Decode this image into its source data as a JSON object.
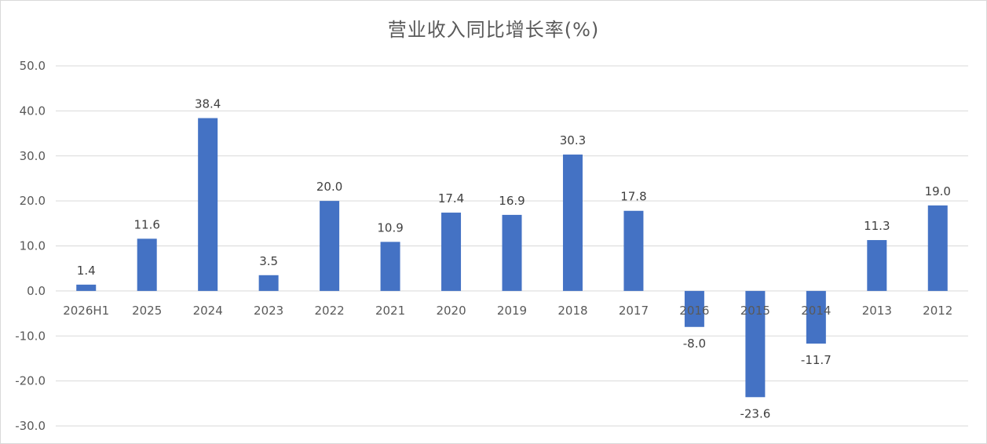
{
  "chart_data": {
    "type": "bar",
    "title": "营业收入同比增长率(%)",
    "categories": [
      "2026H1",
      "2025",
      "2024",
      "2023",
      "2022",
      "2021",
      "2020",
      "2019",
      "2018",
      "2017",
      "2016",
      "2015",
      "2014",
      "2013",
      "2012"
    ],
    "series": [
      {
        "values": [
          1.4,
          11.6,
          38.4,
          3.5,
          20.0,
          10.9,
          17.4,
          16.9,
          30.3,
          17.8,
          -8.0,
          -23.6,
          -11.7,
          11.3,
          19.0
        ],
        "color": "#4472c4"
      }
    ],
    "ylim": [
      -30,
      50
    ],
    "yticks": [
      "-30.0",
      "-20.0",
      "-10.0",
      "0.0",
      "10.0",
      "20.0",
      "30.0",
      "40.0",
      "50.0"
    ],
    "data_labels": [
      "1.4",
      "11.6",
      "38.4",
      "3.5",
      "20.0",
      "10.9",
      "17.4",
      "16.9",
      "30.3",
      "17.8",
      "-8.0",
      "-23.6",
      "-11.7",
      "11.3",
      "19.0"
    ],
    "grid": true,
    "legend": "none",
    "gridline_color": "#d9d9d9",
    "axis_text_color": "#595959"
  }
}
